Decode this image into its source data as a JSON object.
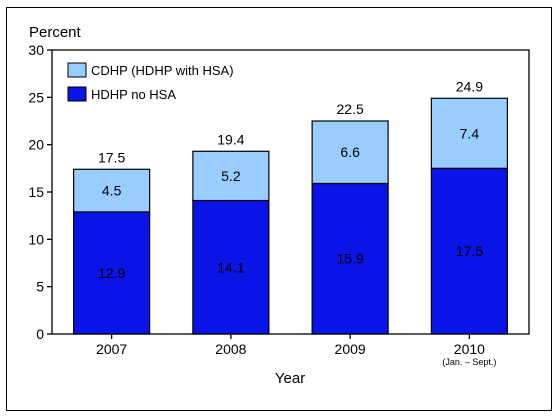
{
  "chart_data": {
    "type": "bar",
    "stacked": true,
    "ylabel": "Percent",
    "xlabel": "Year",
    "ylim": [
      0,
      30
    ],
    "yticks": [
      0,
      5,
      10,
      15,
      20,
      25,
      30
    ],
    "grid": false,
    "legend_position": "top-left",
    "categories": [
      "2007",
      "2008",
      "2009",
      "2010"
    ],
    "category_sublabels": [
      "",
      "",
      "",
      "(Jan. – Sept.)"
    ],
    "series": [
      {
        "name": "HDHP no HSA",
        "color": "#0a14e6",
        "values": [
          12.9,
          14.1,
          15.9,
          17.5
        ]
      },
      {
        "name": "CDHP (HDHP with HSA)",
        "color": "#99ccff",
        "values": [
          4.5,
          5.2,
          6.6,
          7.4
        ]
      }
    ],
    "totals": [
      17.5,
      19.4,
      22.5,
      24.9
    ]
  }
}
